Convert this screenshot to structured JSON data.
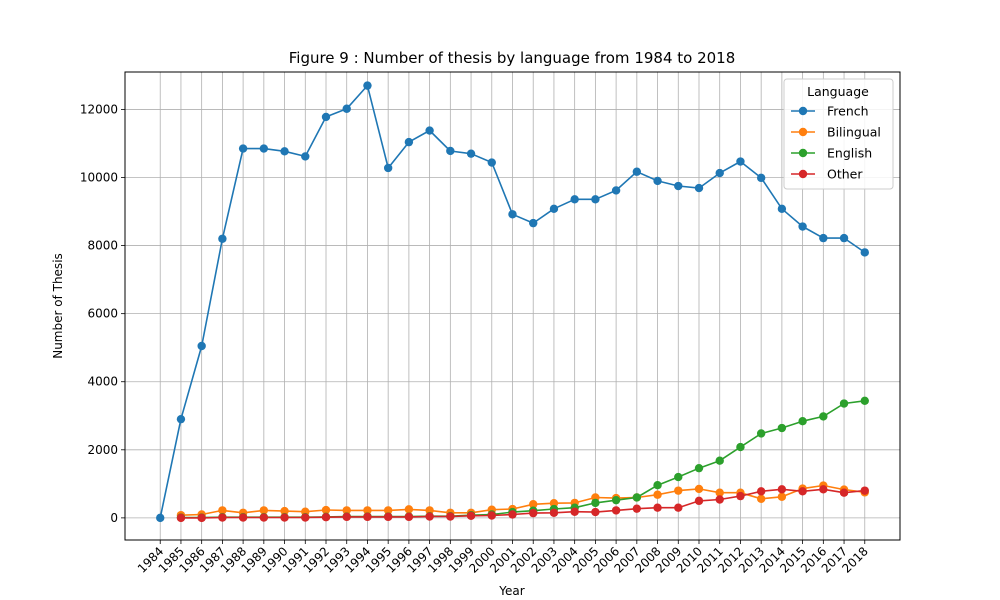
{
  "chart_data": {
    "type": "line",
    "title": "Figure 9 : Number of thesis by language from 1984 to 2018",
    "xlabel": "Year",
    "ylabel": "Number of Thesis",
    "x": [
      1984,
      1985,
      1986,
      1987,
      1988,
      1989,
      1990,
      1991,
      1992,
      1993,
      1994,
      1995,
      1996,
      1997,
      1998,
      1999,
      2000,
      2001,
      2002,
      2003,
      2004,
      2005,
      2006,
      2007,
      2008,
      2009,
      2010,
      2011,
      2012,
      2013,
      2014,
      2015,
      2016,
      2017,
      2018
    ],
    "ylim": [
      -650,
      13100
    ],
    "yticks": [
      0,
      2000,
      4000,
      6000,
      8000,
      10000,
      12000
    ],
    "grid": true,
    "legend": {
      "title": "Language",
      "placement": "top-right"
    },
    "series": [
      {
        "name": "French",
        "color": "#1f77b4",
        "x": [
          1984,
          1985,
          1986,
          1987,
          1988,
          1989,
          1990,
          1991,
          1992,
          1993,
          1994,
          1995,
          1996,
          1997,
          1998,
          1999,
          2000,
          2001,
          2002,
          2003,
          2004,
          2005,
          2006,
          2007,
          2008,
          2009,
          2010,
          2011,
          2012,
          2013,
          2014,
          2015,
          2016,
          2017,
          2018
        ],
        "values": [
          0,
          2900,
          5050,
          8200,
          10850,
          10850,
          10770,
          10620,
          11780,
          12020,
          12700,
          10280,
          11040,
          11380,
          10780,
          10700,
          10440,
          8920,
          8660,
          9080,
          9360,
          9360,
          9620,
          10170,
          9900,
          9750,
          9690,
          10130,
          10470,
          9990,
          9080,
          8560,
          8220,
          8220,
          7800
        ]
      },
      {
        "name": "Bilingual",
        "color": "#ff7f0e",
        "x": [
          1985,
          1986,
          1987,
          1988,
          1989,
          1990,
          1991,
          1992,
          1993,
          1994,
          1995,
          1996,
          1997,
          1998,
          1999,
          2000,
          2001,
          2002,
          2003,
          2004,
          2005,
          2006,
          2007,
          2008,
          2009,
          2010,
          2011,
          2012,
          2013,
          2014,
          2015,
          2016,
          2017,
          2018
        ],
        "values": [
          80,
          100,
          220,
          150,
          220,
          200,
          180,
          230,
          220,
          220,
          220,
          250,
          220,
          150,
          150,
          240,
          260,
          400,
          430,
          440,
          600,
          580,
          600,
          680,
          800,
          850,
          740,
          740,
          560,
          620,
          860,
          950,
          830,
          750
        ]
      },
      {
        "name": "English",
        "color": "#2ca02c",
        "x": [
          1985,
          1986,
          1987,
          1988,
          1989,
          1990,
          1991,
          1992,
          1993,
          1994,
          1995,
          1996,
          1997,
          1998,
          1999,
          2000,
          2001,
          2002,
          2003,
          2004,
          2005,
          2006,
          2007,
          2008,
          2009,
          2010,
          2011,
          2012,
          2013,
          2014,
          2015,
          2016,
          2017,
          2018
        ],
        "values": [
          10,
          10,
          20,
          20,
          20,
          20,
          20,
          30,
          40,
          40,
          40,
          40,
          50,
          50,
          80,
          100,
          170,
          210,
          260,
          300,
          440,
          520,
          600,
          960,
          1200,
          1460,
          1680,
          2080,
          2480,
          2640,
          2840,
          2980,
          3360,
          3440
        ]
      },
      {
        "name": "Other",
        "color": "#d62728",
        "x": [
          1985,
          1986,
          1987,
          1988,
          1989,
          1990,
          1991,
          1992,
          1993,
          1994,
          1995,
          1996,
          1997,
          1998,
          1999,
          2000,
          2001,
          2002,
          2003,
          2004,
          2005,
          2006,
          2007,
          2008,
          2009,
          2010,
          2011,
          2012,
          2013,
          2014,
          2015,
          2016,
          2017,
          2018
        ],
        "values": [
          0,
          0,
          10,
          10,
          10,
          10,
          10,
          20,
          30,
          30,
          30,
          30,
          40,
          40,
          60,
          70,
          100,
          140,
          150,
          180,
          170,
          220,
          270,
          300,
          300,
          500,
          540,
          640,
          780,
          840,
          780,
          840,
          740,
          800
        ]
      }
    ]
  }
}
